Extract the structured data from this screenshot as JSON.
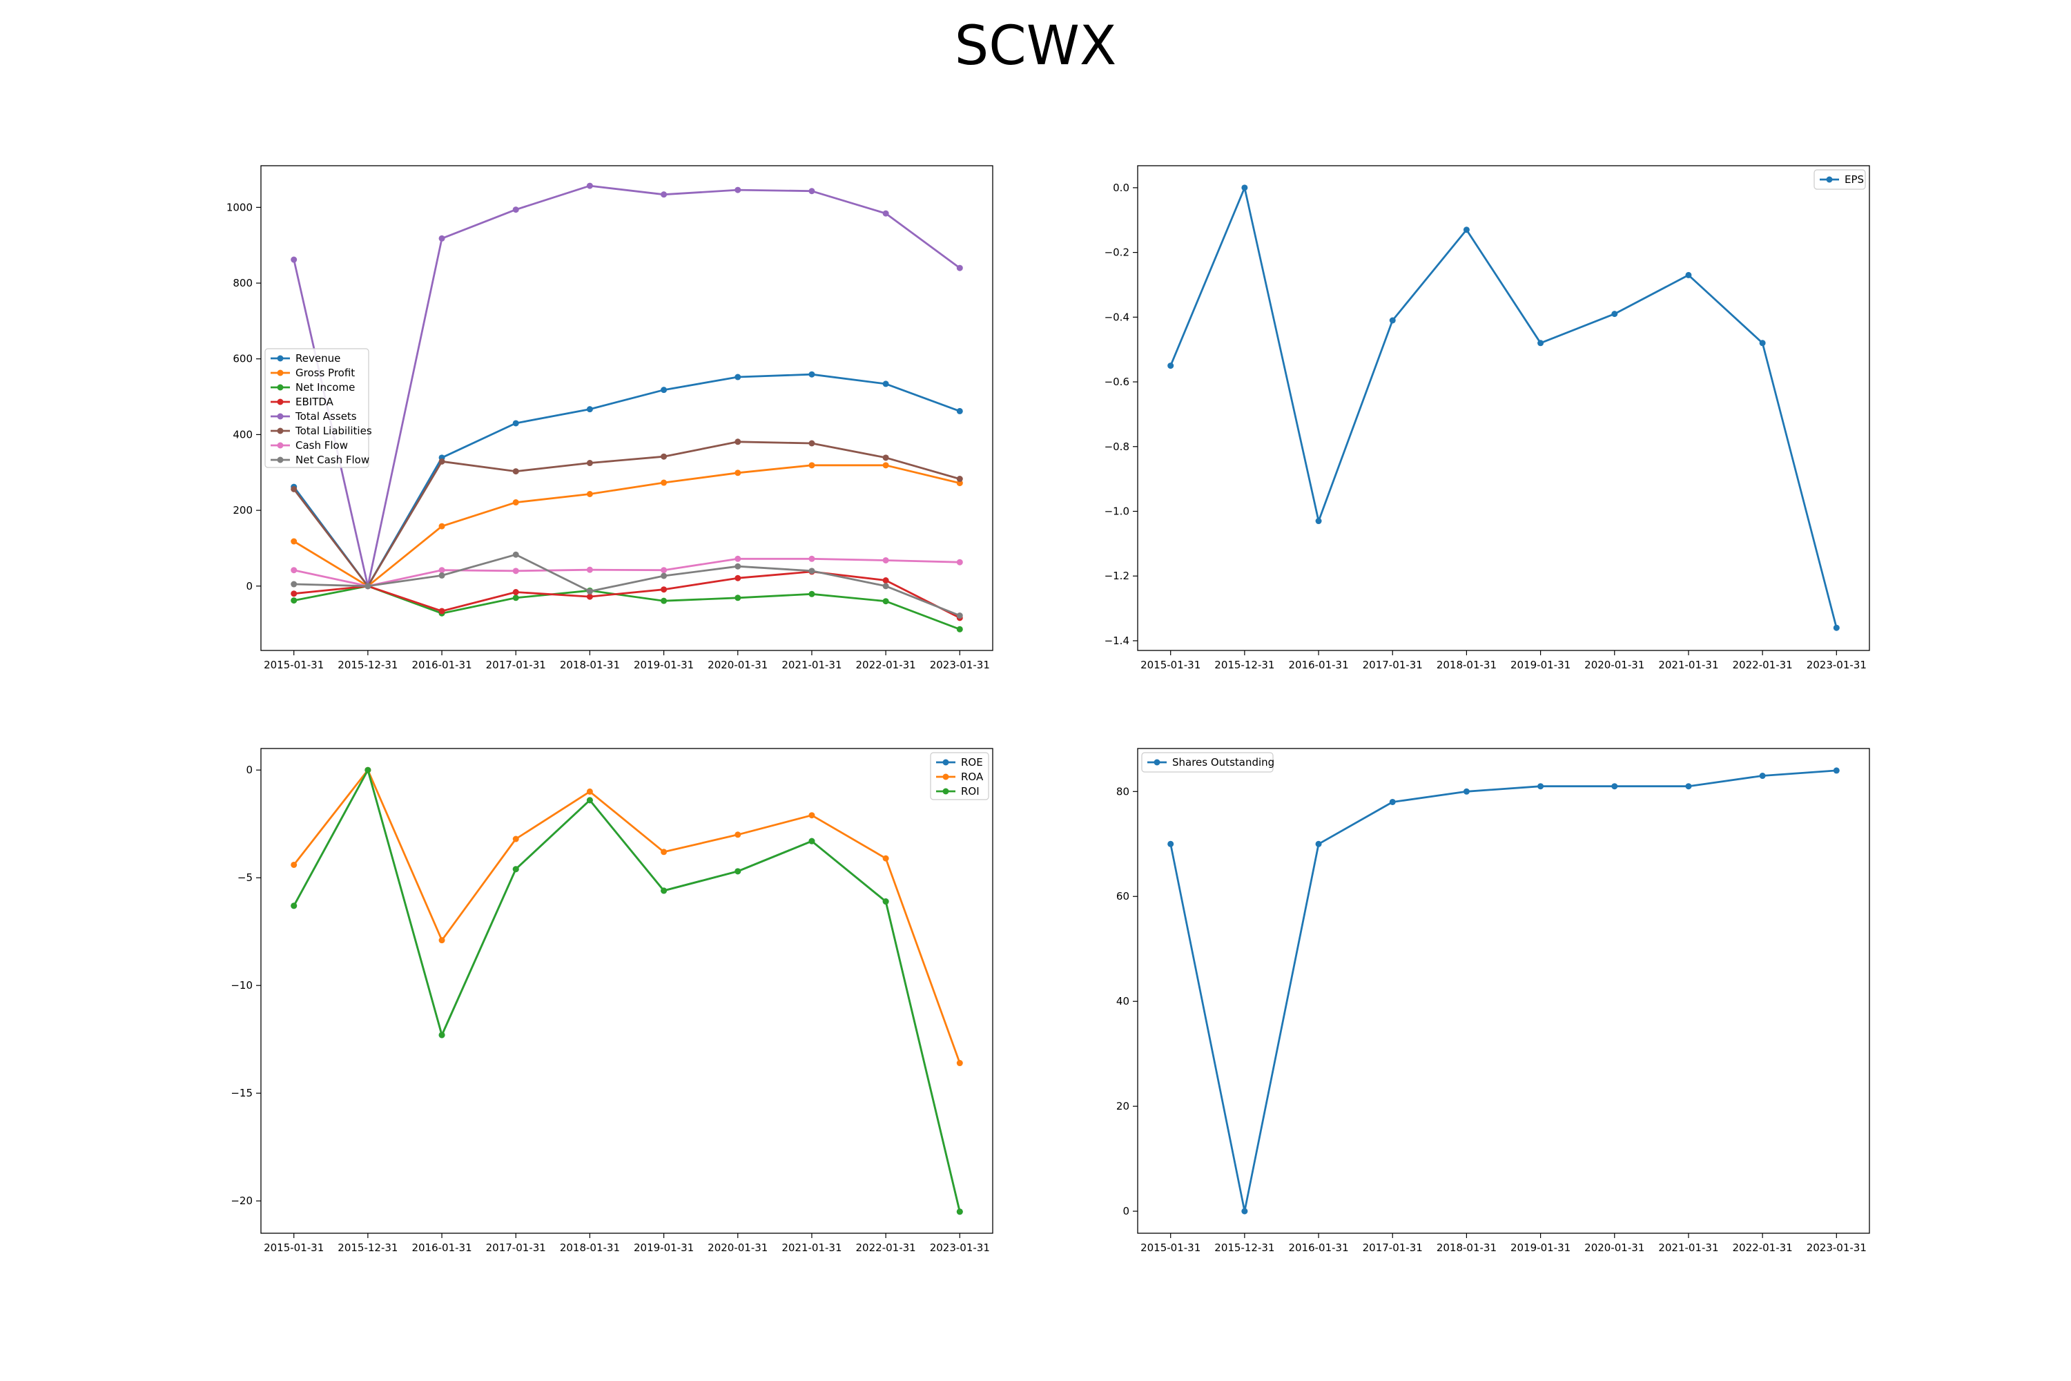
{
  "figure": {
    "title": "SCWX"
  },
  "chart_data": [
    {
      "type": "line",
      "x": [
        "2015-01-31",
        "2015-12-31",
        "2016-01-31",
        "2017-01-31",
        "2018-01-31",
        "2019-01-31",
        "2020-01-31",
        "2021-01-31",
        "2022-01-31",
        "2023-01-31"
      ],
      "ylim": [
        -170,
        1110
      ],
      "yticks": [
        0,
        200,
        400,
        600,
        800,
        1000
      ],
      "legend": "center-left",
      "grid": false,
      "series": [
        {
          "name": "Revenue",
          "color": "#1f77b4",
          "values": [
            262,
            0,
            339,
            430,
            467,
            518,
            552,
            559,
            534,
            462
          ]
        },
        {
          "name": "Gross Profit",
          "color": "#ff7f0e",
          "values": [
            118,
            0,
            158,
            221,
            243,
            273,
            299,
            319,
            319,
            272
          ]
        },
        {
          "name": "Net Income",
          "color": "#2ca02c",
          "values": [
            -38,
            0,
            -72,
            -31,
            -12,
            -39,
            -31,
            -21,
            -40,
            -114
          ]
        },
        {
          "name": "EBITDA",
          "color": "#d62728",
          "values": [
            -20,
            0,
            -66,
            -16,
            -28,
            -9,
            21,
            38,
            15,
            -84
          ]
        },
        {
          "name": "Total Assets",
          "color": "#9467bd",
          "values": [
            862,
            0,
            918,
            994,
            1057,
            1034,
            1046,
            1043,
            984,
            840
          ]
        },
        {
          "name": "Total Liabilities",
          "color": "#8c564b",
          "values": [
            256,
            0,
            329,
            303,
            325,
            342,
            381,
            377,
            339,
            283
          ]
        },
        {
          "name": "Cash Flow",
          "color": "#e377c2",
          "values": [
            42,
            0,
            42,
            40,
            43,
            42,
            72,
            72,
            68,
            63
          ]
        },
        {
          "name": "Net Cash Flow",
          "color": "#7f7f7f",
          "values": [
            5,
            0,
            28,
            83,
            -14,
            27,
            52,
            40,
            0,
            -78
          ]
        }
      ]
    },
    {
      "type": "line",
      "x": [
        "2015-01-31",
        "2015-12-31",
        "2016-01-31",
        "2017-01-31",
        "2018-01-31",
        "2019-01-31",
        "2020-01-31",
        "2021-01-31",
        "2022-01-31",
        "2023-01-31"
      ],
      "ylim": [
        -1.43,
        0.068
      ],
      "yticks": [
        0.0,
        -0.2,
        -0.4,
        -0.6,
        -0.8,
        -1.0,
        -1.2,
        -1.4
      ],
      "ytick_labels": [
        "0.0",
        "−0.2",
        "−0.4",
        "−0.6",
        "−0.8",
        "−1.0",
        "−1.2",
        "−1.4"
      ],
      "legend": "top-right",
      "grid": false,
      "series": [
        {
          "name": "EPS",
          "color": "#1f77b4",
          "values": [
            -0.55,
            0.0,
            -1.03,
            -0.41,
            -0.13,
            -0.48,
            -0.39,
            -0.27,
            -0.48,
            -1.36
          ]
        }
      ]
    },
    {
      "type": "line",
      "x": [
        "2015-01-31",
        "2015-12-31",
        "2016-01-31",
        "2017-01-31",
        "2018-01-31",
        "2019-01-31",
        "2020-01-31",
        "2021-01-31",
        "2022-01-31",
        "2023-01-31"
      ],
      "ylim": [
        -21.5,
        1.0
      ],
      "yticks": [
        0,
        -5,
        -10,
        -15,
        -20
      ],
      "ytick_labels": [
        "0",
        "−5",
        "−10",
        "−15",
        "−20"
      ],
      "legend": "top-right",
      "grid": false,
      "series": [
        {
          "name": "ROE",
          "color": "#1f77b4",
          "values": [
            -6.3,
            0.0,
            -12.3,
            -4.6,
            -1.4,
            -5.6,
            -4.7,
            -3.3,
            -6.1,
            -20.5
          ]
        },
        {
          "name": "ROA",
          "color": "#ff7f0e",
          "values": [
            -4.4,
            0.0,
            -7.9,
            -3.2,
            -1.0,
            -3.8,
            -3.0,
            -2.1,
            -4.1,
            -13.6
          ]
        },
        {
          "name": "ROI",
          "color": "#2ca02c",
          "values": [
            -6.3,
            0.0,
            -12.3,
            -4.6,
            -1.4,
            -5.6,
            -4.7,
            -3.3,
            -6.1,
            -20.5
          ]
        }
      ]
    },
    {
      "type": "line",
      "x": [
        "2015-01-31",
        "2015-12-31",
        "2016-01-31",
        "2017-01-31",
        "2018-01-31",
        "2019-01-31",
        "2020-01-31",
        "2021-01-31",
        "2022-01-31",
        "2023-01-31"
      ],
      "ylim": [
        -4.2,
        88.2
      ],
      "yticks": [
        0,
        20,
        40,
        60,
        80
      ],
      "legend": "top-left",
      "grid": false,
      "series": [
        {
          "name": "Shares Outstanding",
          "color": "#1f77b4",
          "values": [
            70,
            0,
            70,
            78,
            80,
            81,
            81,
            81,
            83,
            84
          ]
        }
      ]
    }
  ]
}
